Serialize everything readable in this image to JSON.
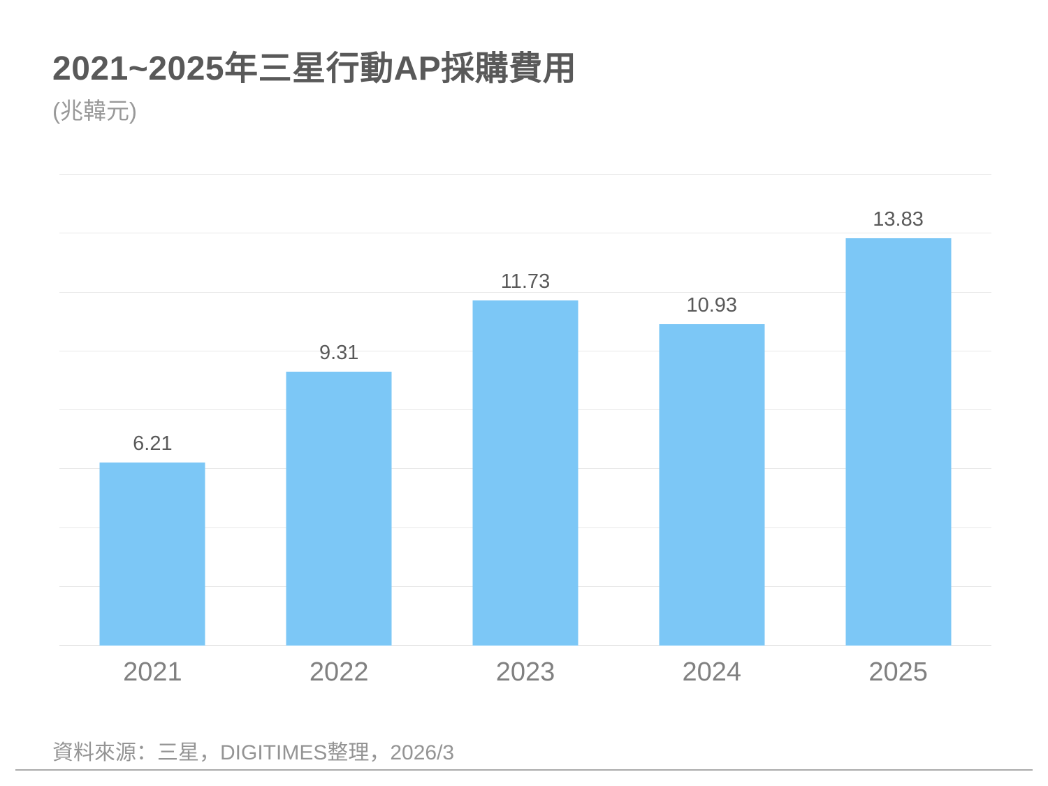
{
  "header": {
    "title": "2021~2025年三星行動AP採購費用",
    "unit": "(兆韓元)"
  },
  "chart_data": {
    "type": "bar",
    "title": "2021~2025年三星行動AP採購費用",
    "unit_label": "(兆韓元)",
    "categories": [
      "2021",
      "2022",
      "2023",
      "2024",
      "2025"
    ],
    "values": [
      6.21,
      9.31,
      11.73,
      10.93,
      13.83
    ],
    "value_labels": [
      "6.21",
      "9.31",
      "11.73",
      "10.93",
      "13.83"
    ],
    "xlabel": "",
    "ylabel": "兆韓元",
    "ylim": [
      0,
      16
    ],
    "gridline_step": 2,
    "grid": "horizontal-only",
    "legend": "none",
    "bar_color": "#7cc7f6"
  },
  "footer": {
    "source": "資料來源：三星，DIGITIMES整理，2026/3"
  },
  "colors": {
    "title": "#595959",
    "subtitle": "#999999",
    "bar": "#7cc7f6",
    "value_label": "#595959",
    "axis_label": "#808080",
    "gridline": "#e8e8e8",
    "baseline": "#d9d9d9",
    "footer_text": "#949494",
    "divider": "#aaaaaa"
  }
}
